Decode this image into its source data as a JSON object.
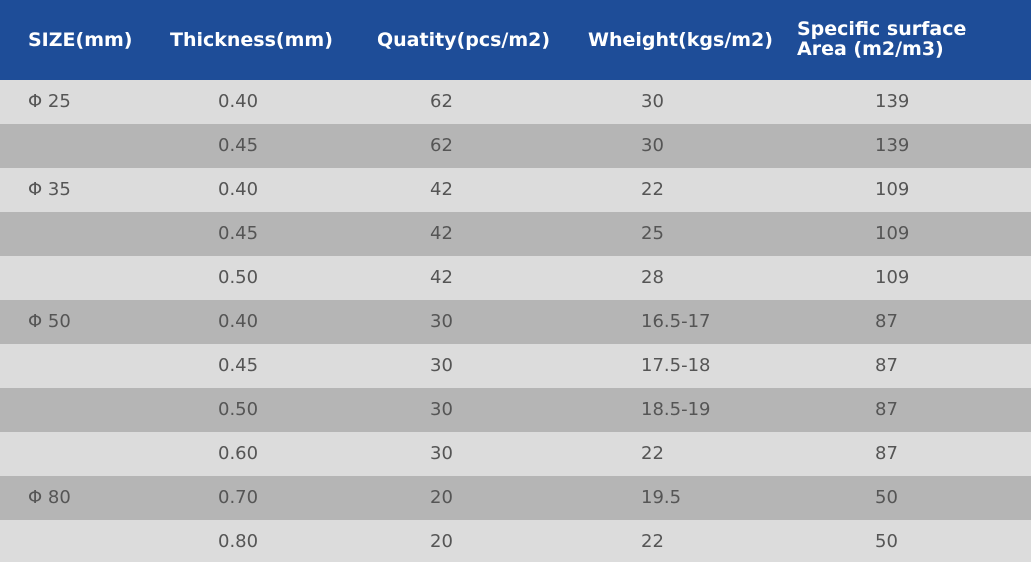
{
  "table": {
    "headers": [
      "SIZE(mm)",
      "Thickness(mm)",
      "Quatity(pcs/m2)",
      "Wheight(kgs/m2)",
      "Specific surface Area (m2/m3)"
    ],
    "rows": [
      [
        "Φ 25",
        "0.40",
        "62",
        "30",
        "139"
      ],
      [
        null,
        "0.45",
        "62",
        "30",
        "139"
      ],
      [
        "Φ 35",
        "0.40",
        "42",
        "22",
        "109"
      ],
      [
        null,
        "0.45",
        "42",
        "25",
        "109"
      ],
      [
        null,
        "0.50",
        "42",
        "28",
        "109"
      ],
      [
        "Φ 50",
        "0.40",
        "30",
        "16.5-17",
        "87"
      ],
      [
        null,
        "0.45",
        "30",
        "17.5-18",
        "87"
      ],
      [
        null,
        "0.50",
        "30",
        "18.5-19",
        "87"
      ],
      [
        null,
        "0.60",
        "30",
        "22",
        "87"
      ],
      [
        "Φ 80",
        "0.70",
        "20",
        "19.5",
        "50"
      ],
      [
        null,
        "0.80",
        "20",
        "22",
        "50"
      ]
    ]
  }
}
